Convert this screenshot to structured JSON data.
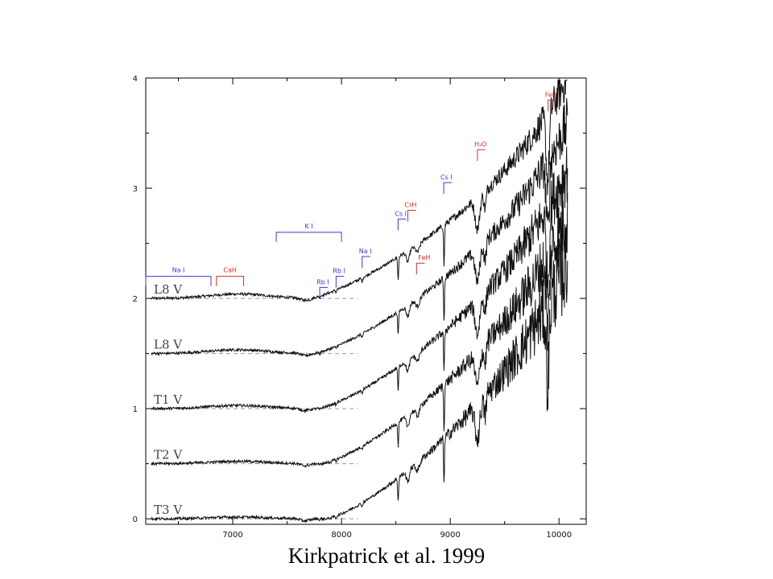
{
  "caption": "Kirkpatrick et al. 1999",
  "colors": {
    "axis": "#000000",
    "spectrum": "#111111",
    "atomic_feature": "#3a3acc",
    "molecular_feature": "#d03030",
    "baseline": "#9a9a9a"
  },
  "chart_data": {
    "type": "line",
    "title": "",
    "xlabel": "",
    "ylabel": "",
    "xlim": [
      6200,
      10250
    ],
    "ylim": [
      -0.05,
      4.0
    ],
    "x_ticks": [
      7000,
      8000,
      9000,
      10000
    ],
    "y_ticks": [
      0,
      1,
      2,
      3,
      4
    ],
    "grid": false,
    "series": [
      {
        "name": "L8 V",
        "offset": 2.0
      },
      {
        "name": "L8 V",
        "offset": 1.5
      },
      {
        "name": "T1 V",
        "offset": 1.0
      },
      {
        "name": "T2 V",
        "offset": 0.5
      },
      {
        "name": "T3 V",
        "offset": 0.0
      }
    ],
    "features": [
      {
        "label": "Na I",
        "kind": "atomic",
        "x_start": 6200,
        "x_end": 6800,
        "y": 2.2
      },
      {
        "label": "CaH",
        "kind": "molecular",
        "x_start": 6850,
        "x_end": 7100,
        "y": 2.2
      },
      {
        "label": "K I",
        "kind": "atomic",
        "x_start": 7400,
        "x_end": 8000,
        "y": 2.6
      },
      {
        "label": "Rb I",
        "kind": "atomic",
        "x": 7800,
        "y": 2.1
      },
      {
        "label": "Rb I",
        "kind": "atomic",
        "x": 7950,
        "y": 2.2
      },
      {
        "label": "Na I",
        "kind": "atomic",
        "x": 8190,
        "y": 2.38
      },
      {
        "label": "Cs I",
        "kind": "atomic",
        "x": 8520,
        "y": 2.72
      },
      {
        "label": "CrH",
        "kind": "molecular",
        "x": 8610,
        "y": 2.8
      },
      {
        "label": "FeH",
        "kind": "molecular",
        "x": 8690,
        "y": 2.32
      },
      {
        "label": "Cs I",
        "kind": "atomic",
        "x": 8940,
        "y": 3.05
      },
      {
        "label": "H₂O",
        "kind": "molecular",
        "x": 9250,
        "y": 3.35
      },
      {
        "label": "FeH",
        "kind": "molecular",
        "x": 9900,
        "y": 3.8
      }
    ]
  }
}
